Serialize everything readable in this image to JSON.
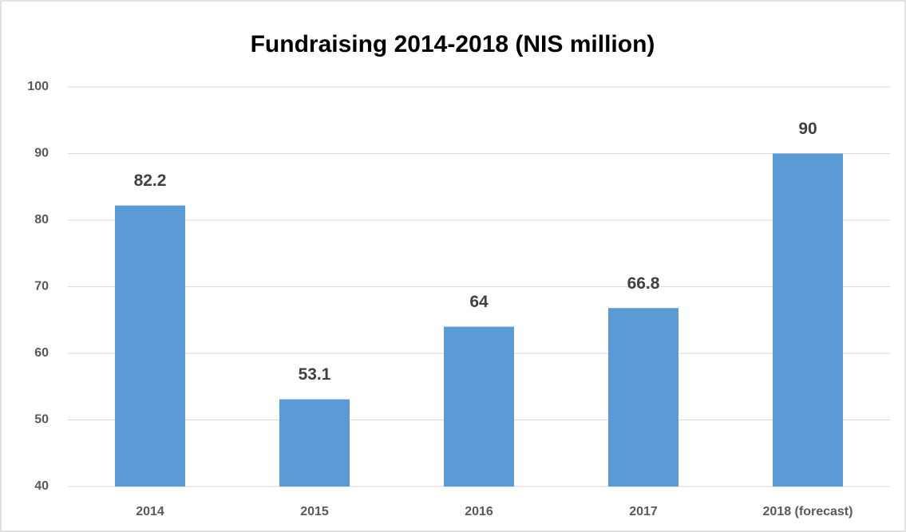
{
  "chart_data": {
    "type": "bar",
    "title": "Fundraising 2014-2018 (NIS million)",
    "categories": [
      "2014",
      "2015",
      "2016",
      "2017",
      "2018 (forecast)"
    ],
    "values": [
      82.2,
      53.1,
      64,
      66.8,
      90
    ],
    "color": "#5b9bd5",
    "ylim": [
      40,
      100
    ],
    "yticks": [
      40,
      50,
      60,
      70,
      80,
      90,
      100
    ],
    "grid": true
  }
}
